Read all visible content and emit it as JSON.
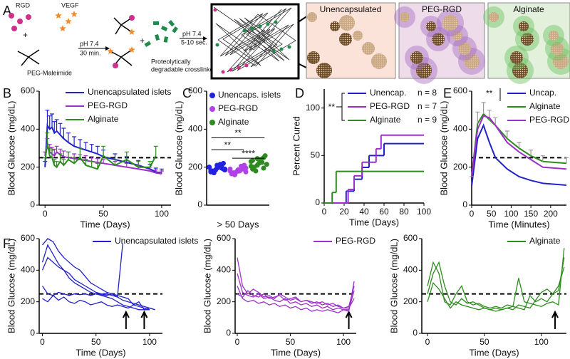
{
  "schematic": {
    "panel": "A",
    "rgd": "RGD",
    "vegf": "VEGF",
    "plus1": "+",
    "peg": "PEG-Maleimide",
    "ph1": "pH 7.4",
    "time1": "30 min.",
    "plus2": "+",
    "crosslinker": [
      "Proteolytically",
      "degradable crosslinker"
    ],
    "ph2": "pH 7.4",
    "time2": "5-10 sec.",
    "images": [
      "Unencapsulated",
      "PEG-RGD",
      "Alginate"
    ]
  },
  "chart_data": [
    {
      "type": "line",
      "panel": "B",
      "ylabel": "Blood Glucose (mg/dL)",
      "xlabel": "Time (Days)",
      "x": [
        0,
        2,
        4,
        6,
        8,
        10,
        13,
        16,
        20,
        25,
        30,
        35,
        40,
        45,
        50,
        60,
        70,
        80,
        90,
        95,
        100
      ],
      "series": [
        {
          "name": "Unencapsulated islets",
          "color": "#2222c8",
          "values": [
            200,
            420,
            400,
            410,
            380,
            390,
            370,
            350,
            330,
            310,
            300,
            290,
            280,
            270,
            255,
            240,
            225,
            210,
            190,
            175,
            170
          ],
          "errors": [
            30,
            80,
            70,
            70,
            60,
            60,
            60,
            55,
            50,
            50,
            45,
            40,
            40,
            40,
            35,
            30,
            30,
            25,
            25,
            20,
            20
          ]
        },
        {
          "name": "PEG-RGD",
          "color": "#9b30c8",
          "values": [
            260,
            310,
            280,
            270,
            260,
            280,
            265,
            255,
            250,
            245,
            240,
            235,
            230,
            225,
            220,
            210,
            200,
            190,
            180,
            170,
            165
          ],
          "errors": [
            20,
            40,
            40,
            35,
            35,
            30,
            30,
            30,
            30,
            25,
            25,
            25,
            25,
            20,
            20,
            20,
            20,
            20,
            20,
            15,
            15
          ]
        },
        {
          "name": "Alginate",
          "color": "#2e8b1f",
          "values": [
            230,
            330,
            260,
            250,
            210,
            200,
            230,
            210,
            240,
            220,
            250,
            210,
            200,
            190,
            260,
            210,
            240,
            200,
            200,
            260,
            null
          ],
          "errors": [
            20,
            50,
            40,
            40,
            30,
            30,
            40,
            30,
            40,
            30,
            50,
            30,
            30,
            30,
            50,
            30,
            40,
            30,
            30,
            50,
            null
          ]
        }
      ],
      "hline": 250,
      "xlim": [
        -5,
        108
      ],
      "xticks": [
        0,
        50,
        100
      ],
      "ylim": [
        0,
        600
      ],
      "yticks": [
        0,
        200,
        400,
        600
      ]
    },
    {
      "type": "strip",
      "panel": "C",
      "ylabel": "Blood Glucose (mg/dL)",
      "xlabel": "> 50 Days",
      "series": [
        {
          "name": "Unencaps. islets",
          "color": "#2222e0",
          "values": [
            200,
            185,
            210,
            175,
            195,
            220,
            180,
            205,
            190,
            170,
            215,
            200,
            185,
            195,
            180,
            210,
            190,
            175,
            200,
            185
          ]
        },
        {
          "name": "PEG-RGD",
          "color": "#b040e8",
          "values": [
            190,
            175,
            200,
            165,
            185,
            210,
            170,
            180,
            195,
            160,
            205,
            180,
            175,
            190,
            170,
            185,
            200,
            165,
            180,
            175
          ]
        },
        {
          "name": "Alginate",
          "color": "#2e8b1f",
          "values": [
            230,
            210,
            250,
            190,
            220,
            260,
            200,
            240,
            215,
            180,
            225,
            205,
            245,
            195,
            235
          ]
        }
      ],
      "significance": [
        {
          "label": "**",
          "from": 0,
          "to": 2,
          "y": 355
        },
        {
          "label": "**",
          "from": 0,
          "to": 1,
          "y": 292
        },
        {
          "label": "****",
          "from": 1,
          "to": 2,
          "y": 247
        }
      ],
      "ylim": [
        0,
        600
      ],
      "yticks": [
        0,
        200,
        400,
        600
      ]
    },
    {
      "type": "step",
      "panel": "D",
      "ylabel": "Percent Cured",
      "xlabel": "Time (Days)",
      "bracket_label": "**",
      "series": [
        {
          "name": "Unencap.",
          "n_label": "n = 8",
          "color": "#2222c8",
          "x": [
            0,
            22,
            30,
            38,
            45,
            60,
            100
          ],
          "values": [
            0,
            12.5,
            25,
            37.5,
            50,
            62.5,
            62.5
          ]
        },
        {
          "name": "PEG-RGD",
          "n_label": "n = 7",
          "color": "#9b30c8",
          "x": [
            0,
            24,
            30,
            38,
            52,
            57,
            100
          ],
          "values": [
            0,
            14.3,
            28.6,
            42.9,
            57.1,
            71.4,
            71.4
          ]
        },
        {
          "name": "Alginate",
          "n_label": "n = 9",
          "color": "#2e8b1f",
          "x": [
            0,
            8,
            12,
            100
          ],
          "values": [
            0,
            11.1,
            33.3,
            33.3
          ]
        }
      ],
      "xlim": [
        0,
        100
      ],
      "xticks": [
        0,
        20,
        40,
        60,
        80,
        100
      ],
      "ylim": [
        0,
        120
      ],
      "yticks": [
        0,
        50,
        100
      ]
    },
    {
      "type": "line",
      "panel": "E",
      "ylabel": "Blood Glucose (mg/dL)",
      "xlabel": "Time (Minutes)",
      "annotation": "**",
      "x": [
        0,
        15,
        30,
        45,
        60,
        90,
        120,
        150,
        180,
        240
      ],
      "series": [
        {
          "name": "Uncap.",
          "color": "#2222c8",
          "values": [
            100,
            350,
            420,
            330,
            250,
            190,
            150,
            130,
            115,
            105
          ]
        },
        {
          "name": "Alginate",
          "color": "#2e8b1f",
          "values": [
            150,
            430,
            480,
            450,
            420,
            350,
            300,
            260,
            230,
            220
          ],
          "errors": [
            0,
            60,
            60,
            50,
            40,
            40,
            30,
            30,
            30,
            30
          ]
        },
        {
          "name": "PEG-RGD",
          "color": "#9b30c8",
          "values": [
            150,
            400,
            470,
            460,
            420,
            330,
            280,
            240,
            200,
            190
          ]
        }
      ],
      "hline": 250,
      "xlim": [
        0,
        240
      ],
      "xticks": [
        0,
        50,
        100,
        150,
        200
      ],
      "ylim": [
        0,
        600
      ],
      "yticks": [
        0,
        200,
        400,
        600
      ]
    },
    {
      "type": "line",
      "panel": "F",
      "ylabel": "Blood Glucose (mg/dL)",
      "xlabel": "Time (Days)",
      "legend": "Unencapsulated islets",
      "color": "#2222c8",
      "x": [
        0,
        5,
        10,
        15,
        20,
        25,
        30,
        35,
        40,
        45,
        50,
        55,
        60,
        65,
        70,
        75,
        80,
        85,
        90,
        95,
        100,
        105
      ],
      "series": [
        {
          "values": [
            560,
            600,
            580,
            520,
            480,
            450,
            420,
            400,
            360,
            320,
            300,
            280,
            260,
            250,
            240,
            230,
            220,
            180,
            170,
            160,
            150,
            null
          ]
        },
        {
          "values": [
            450,
            560,
            500,
            440,
            400,
            380,
            340,
            320,
            300,
            280,
            260,
            250,
            250,
            240,
            230,
            210,
            200,
            190,
            180,
            170,
            160,
            150
          ]
        },
        {
          "values": [
            300,
            250,
            240,
            260,
            250,
            240,
            250,
            245,
            250,
            240,
            250,
            245,
            240,
            250,
            230,
            570,
            null,
            null,
            null,
            null,
            null,
            null
          ]
        },
        {
          "values": [
            220,
            200,
            240,
            210,
            230,
            200,
            190,
            210,
            200,
            180,
            190,
            200,
            180,
            170,
            180,
            170,
            160,
            180,
            200,
            150,
            160,
            150
          ]
        },
        {
          "values": [
            400,
            480,
            450,
            420,
            400,
            350,
            320,
            300,
            280,
            260,
            250,
            240,
            230,
            220,
            200,
            180,
            170,
            160,
            150,
            150,
            150,
            null
          ]
        }
      ],
      "arrows": [
        78,
        95
      ],
      "hline": 250,
      "xlim": [
        -3,
        112
      ],
      "xticks": [
        0,
        50,
        100
      ],
      "ylim": [
        0,
        600
      ],
      "yticks": [
        0,
        200,
        400,
        600
      ]
    },
    {
      "type": "line",
      "ylabel": "Blood Glucose (mg/dL)",
      "xlabel": "Time (Days)",
      "legend": "PEG-RGD",
      "color": "#9b30c8",
      "x": [
        0,
        5,
        10,
        15,
        20,
        25,
        30,
        35,
        40,
        45,
        50,
        55,
        60,
        65,
        70,
        75,
        80,
        85,
        90,
        95,
        100,
        105,
        110
      ],
      "series": [
        {
          "values": [
            480,
            300,
            250,
            280,
            260,
            230,
            240,
            220,
            250,
            230,
            210,
            220,
            200,
            210,
            190,
            200,
            180,
            190,
            170,
            180,
            160,
            170,
            300
          ]
        },
        {
          "values": [
            380,
            260,
            240,
            230,
            250,
            220,
            230,
            210,
            200,
            220,
            190,
            200,
            180,
            190,
            170,
            180,
            160,
            170,
            150,
            160,
            150,
            140,
            330
          ]
        },
        {
          "values": [
            300,
            220,
            200,
            210,
            190,
            200,
            180,
            190,
            170,
            180,
            160,
            170,
            150,
            160,
            140,
            150,
            140,
            150,
            140,
            130,
            150,
            150,
            270
          ]
        },
        {
          "values": [
            250,
            230,
            270,
            240,
            230,
            250,
            220,
            230,
            240,
            210,
            220,
            230,
            200,
            210,
            200,
            190,
            200,
            180,
            190,
            170,
            160,
            160,
            220
          ]
        }
      ],
      "arrows": [
        105
      ],
      "hline": 250,
      "xlim": [
        -2,
        112
      ],
      "xticks": [
        0,
        50,
        100
      ],
      "ylim": [
        0,
        600
      ],
      "yticks": [
        0,
        200,
        400,
        600
      ]
    },
    {
      "type": "line",
      "ylabel": "Blood Glucose (mg/dL)",
      "xlabel": "Time (Days)",
      "legend": "Alginate",
      "color": "#2e8b1f",
      "x": [
        0,
        5,
        10,
        15,
        20,
        25,
        30,
        35,
        40,
        45,
        50,
        55,
        60,
        65,
        70,
        75,
        80,
        85,
        90,
        95,
        100,
        105,
        110,
        115,
        120
      ],
      "series": [
        {
          "values": [
            300,
            450,
            380,
            200,
            180,
            250,
            300,
            200,
            180,
            190,
            170,
            160,
            170,
            160,
            180,
            170,
            350,
            200,
            190,
            180,
            170,
            190,
            200,
            180,
            540
          ]
        },
        {
          "values": [
            250,
            380,
            450,
            300,
            200,
            180,
            220,
            190,
            200,
            180,
            160,
            150,
            160,
            150,
            160,
            170,
            160,
            150,
            240,
            200,
            220,
            200,
            250,
            270,
            480
          ]
        },
        {
          "values": [
            200,
            320,
            280,
            220,
            160,
            200,
            180,
            170,
            160,
            150,
            160,
            150,
            140,
            150,
            160,
            150,
            180,
            170,
            160,
            210,
            260,
            280,
            250,
            300,
            420
          ]
        }
      ],
      "arrows": [
        112
      ],
      "hline": 250,
      "xlim": [
        -5,
        122
      ],
      "xticks": [
        0,
        50,
        100
      ],
      "ylim": [
        0,
        600
      ],
      "yticks": [
        0,
        200,
        400,
        600
      ]
    }
  ]
}
